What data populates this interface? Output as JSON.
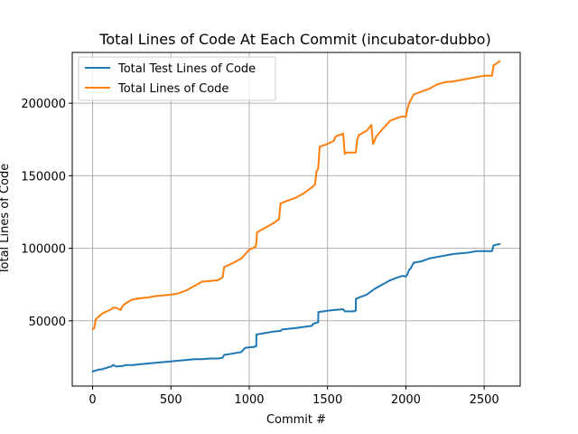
{
  "chart_data": {
    "type": "line",
    "title": "Total Lines of Code At Each Commit (incubator-dubbo)",
    "xlabel": "Commit #",
    "ylabel": "Total Lines of Code",
    "xlim": [
      -130,
      2730
    ],
    "ylim": [
      5000,
      235000
    ],
    "xticks": [
      0,
      500,
      1000,
      1500,
      2000,
      2500
    ],
    "yticks": [
      50000,
      100000,
      150000,
      200000
    ],
    "xtick_labels": [
      "0",
      "500",
      "1000",
      "1500",
      "2000",
      "2500"
    ],
    "ytick_labels": [
      "50000",
      "100000",
      "150000",
      "200000"
    ],
    "grid": true,
    "legend_position": "top-left",
    "series": [
      {
        "name": "Total Test Lines of Code",
        "color": "#1f77b4",
        "x": [
          0,
          10,
          30,
          40,
          60,
          70,
          90,
          100,
          120,
          130,
          150,
          160,
          200,
          210,
          260,
          300,
          350,
          400,
          450,
          500,
          550,
          600,
          650,
          700,
          750,
          800,
          830,
          840,
          900,
          950,
          970,
          980,
          1030,
          1040,
          1045,
          1046,
          1100,
          1150,
          1200,
          1210,
          1300,
          1400,
          1410,
          1440,
          1441,
          1500,
          1550,
          1600,
          1610,
          1640,
          1660,
          1680,
          1681,
          1700,
          1750,
          1800,
          1850,
          1900,
          1950,
          1980,
          2000,
          2010,
          2020,
          2030,
          2040,
          2050,
          2100,
          2150,
          2200,
          2250,
          2300,
          2400,
          2450,
          2500,
          2550,
          2560,
          2600
        ],
        "y": [
          15000,
          15500,
          16000,
          16500,
          16500,
          17000,
          17500,
          18000,
          18500,
          19500,
          18500,
          18500,
          19000,
          19500,
          19500,
          20000,
          20500,
          21000,
          21500,
          22000,
          22500,
          23000,
          23500,
          23500,
          24000,
          24000,
          24500,
          26500,
          27500,
          28500,
          31000,
          31500,
          32000,
          32500,
          32500,
          40500,
          41500,
          42500,
          43000,
          44000,
          45000,
          46500,
          48000,
          49000,
          56000,
          57000,
          57500,
          58000,
          56500,
          56500,
          56500,
          57000,
          65000,
          66000,
          68000,
          72000,
          75000,
          78000,
          80000,
          81000,
          80500,
          82000,
          85000,
          86000,
          88000,
          90000,
          91000,
          93000,
          94000,
          95000,
          96000,
          97000,
          98000,
          98000,
          98000,
          102000,
          103000
        ]
      },
      {
        "name": "Total Lines of Code",
        "color": "#ff7f0e",
        "x": [
          0,
          10,
          20,
          40,
          60,
          80,
          100,
          120,
          130,
          150,
          180,
          190,
          200,
          210,
          250,
          300,
          350,
          400,
          450,
          500,
          550,
          600,
          650,
          700,
          750,
          800,
          830,
          840,
          900,
          950,
          1000,
          1040,
          1045,
          1050,
          1100,
          1150,
          1190,
          1200,
          1250,
          1300,
          1350,
          1400,
          1420,
          1430,
          1440,
          1450,
          1500,
          1540,
          1550,
          1600,
          1610,
          1620,
          1680,
          1690,
          1700,
          1750,
          1780,
          1790,
          1800,
          1810,
          1850,
          1900,
          1950,
          1980,
          2000,
          2010,
          2020,
          2050,
          2100,
          2150,
          2200,
          2250,
          2300,
          2350,
          2400,
          2450,
          2500,
          2550,
          2560,
          2600
        ],
        "y": [
          44000,
          45000,
          51000,
          53000,
          55000,
          56000,
          57000,
          58000,
          59000,
          59000,
          57500,
          60000,
          61000,
          62000,
          64500,
          65500,
          66000,
          67000,
          67500,
          68000,
          69000,
          71000,
          74000,
          77000,
          77500,
          78000,
          80000,
          87000,
          90000,
          93000,
          99000,
          101000,
          103000,
          111000,
          114000,
          117000,
          120000,
          131000,
          133000,
          135000,
          138000,
          142000,
          144000,
          153000,
          155000,
          170000,
          172000,
          174000,
          177000,
          179000,
          165000,
          166000,
          166000,
          175000,
          178000,
          181000,
          185000,
          172000,
          174000,
          177000,
          182000,
          188000,
          190000,
          191000,
          190500,
          196000,
          200000,
          206000,
          208000,
          210000,
          213000,
          214500,
          215000,
          216000,
          217000,
          218000,
          219000,
          219000,
          226000,
          229000
        ]
      }
    ]
  }
}
